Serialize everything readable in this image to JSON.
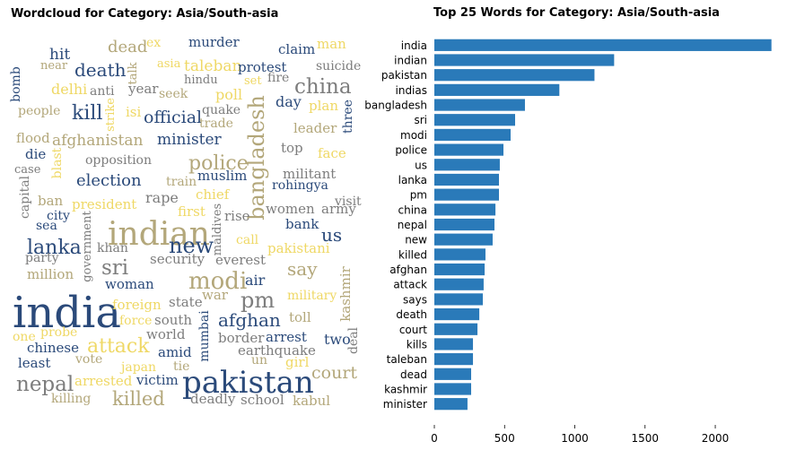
{
  "chart_data": [
    {
      "type": "wordcloud",
      "title": "Wordcloud for Category: Asia/South-asia",
      "words": [
        "dead",
        "ex",
        "murder",
        "claim",
        "man",
        "hit",
        "near",
        "talk",
        "asia",
        "taleban",
        "protest",
        "suicide",
        "bomb",
        "death",
        "hindu",
        "set",
        "fire",
        "china",
        "delhi",
        "anti",
        "year",
        "seek",
        "poll",
        "people",
        "kill",
        "strike",
        "isi",
        "official",
        "quake",
        "trade",
        "day",
        "plan",
        "bangladesh",
        "three",
        "leader",
        "flood",
        "afghanistan",
        "minister",
        "top",
        "face",
        "die",
        "blast",
        "opposition",
        "police",
        "case",
        "militant",
        "muslim",
        "election",
        "train",
        "rohingya",
        "capital",
        "ban",
        "chief",
        "rape",
        "president",
        "visit",
        "maldives",
        "women",
        "army",
        "city",
        "first",
        "rise",
        "bank",
        "sea",
        "government",
        "indian",
        "us",
        "lanka",
        "khan",
        "new",
        "call",
        "pakistani",
        "party",
        "security",
        "everest",
        "sri",
        "million",
        "say",
        "modi",
        "kashmir",
        "woman",
        "air",
        "pm",
        "military",
        "state",
        "war",
        "india",
        "foreign",
        "force",
        "south",
        "afghan",
        "toll",
        "mumbai",
        "deal",
        "one",
        "probe",
        "world",
        "border",
        "arrest",
        "two",
        "chinese",
        "attack",
        "earthquake",
        "amid",
        "vote",
        "un",
        "girl",
        "least",
        "japan",
        "tie",
        "court",
        "nepal",
        "arrested",
        "victim",
        "pakistan",
        "killed",
        "killing",
        "deadly",
        "school",
        "kabul"
      ]
    },
    {
      "type": "barh",
      "title": "Top 25 Words for Category: Asia/South-asia",
      "categories": [
        "india",
        "indian",
        "pakistan",
        "indias",
        "bangladesh",
        "sri",
        "modi",
        "police",
        "us",
        "lanka",
        "pm",
        "china",
        "nepal",
        "new",
        "killed",
        "afghan",
        "attack",
        "says",
        "death",
        "court",
        "kills",
        "taleban",
        "dead",
        "kashmir",
        "minister"
      ],
      "values": [
        2400,
        1280,
        1140,
        890,
        645,
        575,
        543,
        492,
        466,
        460,
        460,
        435,
        428,
        415,
        364,
        358,
        351,
        345,
        320,
        307,
        275,
        275,
        262,
        262,
        236
      ],
      "color": "#2a7ab9",
      "xlim": [
        0,
        2415
      ],
      "xticks": [
        0,
        500,
        1000,
        1500,
        2000
      ]
    }
  ]
}
